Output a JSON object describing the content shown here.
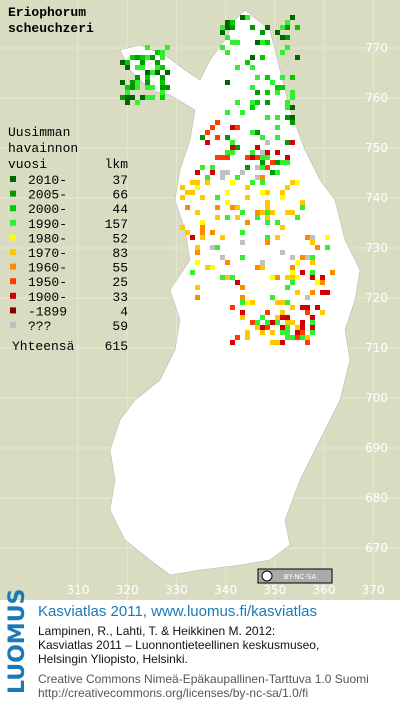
{
  "title": [
    "Eriophorum",
    "scheuchzeri"
  ],
  "legend": {
    "header": [
      "Uusimman",
      "havainnon",
      "vuosi"
    ],
    "count_header": "lkm",
    "entries": [
      {
        "label": "2010-",
        "count": 37,
        "color": "#006400"
      },
      {
        "label": "2005-",
        "count": 66,
        "color": "#009a00"
      },
      {
        "label": "2000-",
        "count": 44,
        "color": "#00cc00"
      },
      {
        "label": "1990-",
        "count": 157,
        "color": "#33ee33"
      },
      {
        "label": "1980-",
        "count": 52,
        "color": "#ffff00"
      },
      {
        "label": "1970-",
        "count": 83,
        "color": "#ffc800"
      },
      {
        "label": "1960-",
        "count": 55,
        "color": "#ff8c00"
      },
      {
        "label": "1950-",
        "count": 25,
        "color": "#ff3c00"
      },
      {
        "label": "1900-",
        "count": 33,
        "color": "#d20000"
      },
      {
        "label": "-1899",
        "count": 4,
        "color": "#820000"
      },
      {
        "label": "???",
        "count": 59,
        "color": "#c0c0c0"
      }
    ],
    "total_label": "Yhteensä",
    "total": 615
  },
  "grid_north": [
    770,
    760,
    750,
    740,
    730,
    720,
    710,
    700,
    690,
    680,
    670
  ],
  "grid_east": [
    310,
    320,
    330,
    340,
    350,
    360,
    370
  ],
  "license_badge": "BY-NC-SA",
  "footer": {
    "logo": "LUOMUS",
    "heading": "Kasviatlas 2011, www.luomus.fi/kasviatlas",
    "citation": [
      "Lampinen, R., Lahti, T. & Heikkinen M. 2012:",
      "Kasviatlas 2011 – Luonnontieteellinen keskusmuseo,",
      "Helsingin Yliopisto, Helsinki."
    ],
    "license": [
      "Creative Commons Nimeä-Epäkaupallinen-Tarttuva 1.0 Suomi",
      "http://creativecommons.org/licenses/by-nc-sa/1.0/fi"
    ]
  }
}
